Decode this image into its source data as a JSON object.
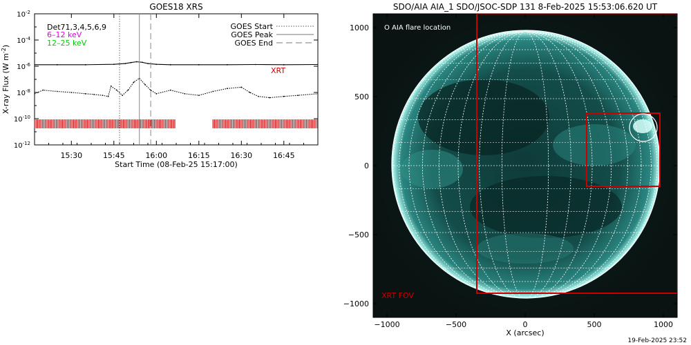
{
  "left_panel": {
    "title": "GOES18 XRS",
    "ylabel_text": "X-ray Flux (W m",
    "ylabel_exp": "-2",
    "ylabel_close": ")",
    "xlabel": "Start Time (08-Feb-25 15:17:00)",
    "channels_label": "Det71,3,4,5,6,9",
    "band_low": "6–12 keV",
    "band_high": "12–25 keV",
    "band_low_color": "#e000e0",
    "band_high_color": "#00cc00",
    "legend": [
      {
        "label": "GOES Start",
        "dash": "dotted"
      },
      {
        "label": "GOES Peak",
        "dash": "solid"
      },
      {
        "label": "GOES End",
        "dash": "dashed"
      }
    ],
    "xrt_label": "XRT",
    "xrt_color": "#cc0000"
  },
  "right_panel": {
    "title": "SDO/AIA AIA_1 SDO/JSOC-SDP 131  8-Feb-2025 15:53:06.620 UT",
    "flare_legend": "O AIA flare location",
    "fov_label": "XRT FOV",
    "xlabel": "X (arcsec)",
    "frame_color": "#cc0000"
  },
  "footer": {
    "timestamp": "19-Feb-2025 23:52"
  },
  "chart_data": [
    {
      "type": "line",
      "title": "GOES18 XRS",
      "xlabel": "Start Time (08-Feb-25 15:17:00)",
      "ylabel": "X-ray Flux (W m^-2)",
      "yscale": "log",
      "xlim": [
        "15:17",
        "16:57"
      ],
      "ylim": [
        1e-12,
        0.01
      ],
      "xticks": [
        "15:30",
        "15:45",
        "16:00",
        "16:15",
        "16:30",
        "16:45"
      ],
      "yticks": [
        {
          "value": 0.01,
          "mant": "10",
          "exp": "-2"
        },
        {
          "value": 0.0001,
          "mant": "10",
          "exp": "-4"
        },
        {
          "value": 1e-06,
          "mant": "10",
          "exp": "-6"
        },
        {
          "value": 1e-08,
          "mant": "10",
          "exp": "-8"
        },
        {
          "value": 1e-10,
          "mant": "10",
          "exp": "-10"
        },
        {
          "value": 1e-12,
          "mant": "10",
          "exp": "-12"
        }
      ],
      "events": {
        "goes_start": "15:47",
        "goes_peak": "15:54",
        "goes_end": "15:58"
      },
      "series": [
        {
          "style": "solid",
          "x": [
            "15:17",
            "15:25",
            "15:35",
            "15:45",
            "15:49",
            "15:51",
            "15:53",
            "15:55",
            "15:57",
            "16:00",
            "16:05",
            "16:15",
            "16:25",
            "16:35",
            "16:45",
            "16:57"
          ],
          "y": [
            1.3e-06,
            1.3e-06,
            1.3e-06,
            1.4e-06,
            1.6e-06,
            1.9e-06,
            2.2e-06,
            2e-06,
            1.6e-06,
            1.4e-06,
            1.3e-06,
            1.3e-06,
            1.3e-06,
            1.35e-06,
            1.3e-06,
            1.35e-06
          ]
        },
        {
          "style": "dotted",
          "x": [
            "15:17",
            "15:20",
            "15:25",
            "15:30",
            "15:35",
            "15:38",
            "15:41",
            "15:43",
            "15:44",
            "15:46",
            "15:48",
            "15:50",
            "15:52",
            "15:54",
            "15:56",
            "15:58",
            "16:00",
            "16:05",
            "16:10",
            "16:15",
            "16:20",
            "16:25",
            "16:30",
            "16:33",
            "16:36",
            "16:40",
            "16:45",
            "16:50",
            "16:57"
          ],
          "y": [
            8e-09,
            1.5e-08,
            1.2e-08,
            1e-08,
            8e-09,
            7e-09,
            6e-09,
            5e-09,
            3e-08,
            1.5e-08,
            6e-09,
            1.5e-08,
            6e-08,
            1.2e-07,
            4e-08,
            1.5e-08,
            8e-09,
            1.5e-08,
            8e-09,
            6e-09,
            1.2e-08,
            2e-08,
            2.5e-08,
            1e-08,
            5e-09,
            4e-09,
            5e-09,
            6e-09,
            8e-09
          ]
        }
      ],
      "xrt_coverage": [
        [
          "15:17",
          "16:07"
        ],
        [
          "16:20",
          "16:57"
        ]
      ]
    },
    {
      "type": "image",
      "title": "SDO/AIA AIA_1 SDO/JSOC-SDP 131  8-Feb-2025 15:53:06.620 UT",
      "xlabel": "X (arcsec)",
      "xlim": [
        -1100,
        1100
      ],
      "ylim": [
        -1100,
        1100
      ],
      "xticks": [
        -1000,
        -500,
        0,
        500,
        1000
      ],
      "yticks": [
        -1000,
        -500,
        0,
        500,
        1000
      ],
      "solar_radius_arcsec": 970,
      "grid_step_deg": 10,
      "xrt_fov": {
        "x": [
          -350,
          1100
        ],
        "y": [
          -930,
          1100
        ]
      },
      "flare_box": {
        "x": [
          440,
          960
        ],
        "y": [
          -150,
          370
        ]
      },
      "flare_location": {
        "x": 840,
        "y": 270,
        "r": 95
      }
    }
  ]
}
